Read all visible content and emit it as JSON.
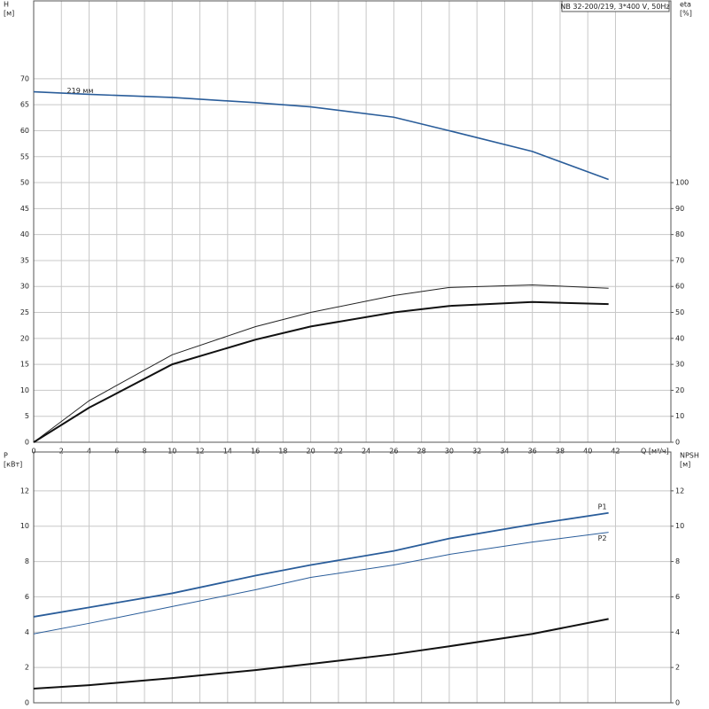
{
  "chart_data": [
    {
      "type": "line",
      "title": "NB 32-200/219, 3*400 V, 50Hz",
      "xlabel": "Q [м³/ч]",
      "ylabel": "H",
      "yunit": "[м]",
      "y2label": "eta",
      "y2unit": "[%]",
      "xlim": [
        0,
        46
      ],
      "xticks": [
        0,
        2,
        4,
        6,
        8,
        10,
        12,
        14,
        16,
        18,
        20,
        22,
        24,
        26,
        28,
        30,
        32,
        34,
        36,
        38,
        40,
        42
      ],
      "ylim": [
        0,
        85
      ],
      "yticks": [
        0,
        5,
        10,
        15,
        20,
        25,
        30,
        35,
        40,
        45,
        50,
        55,
        60,
        65,
        70
      ],
      "y2lim": [
        0,
        170
      ],
      "y2ticks": [
        0,
        10,
        20,
        30,
        40,
        50,
        60,
        70,
        80,
        90,
        100
      ],
      "grid": true,
      "x": [
        0,
        4,
        10,
        16,
        20,
        26,
        30,
        36,
        41.5
      ],
      "series": [
        {
          "name": "219 мм",
          "color": "#2a5d9a",
          "width": 1.6,
          "values": [
            67.5,
            67,
            66.4,
            65.4,
            64.6,
            62.6,
            60,
            56,
            50.6
          ]
        },
        {
          "color": "#222222",
          "width": 1,
          "axis": "y2",
          "values": [
            0,
            16,
            33.7,
            44.5,
            50,
            56.5,
            59.6,
            60.6,
            59.3
          ]
        },
        {
          "color": "#111111",
          "width": 2,
          "axis": "y2",
          "values": [
            0,
            13.3,
            30,
            39.5,
            44.6,
            50,
            52.5,
            54,
            53.2
          ]
        }
      ]
    },
    {
      "type": "line",
      "ylabel": "P",
      "yunit": "[кВт]",
      "y2label": "NPSH",
      "y2unit": "[м]",
      "xlim": [
        0,
        46
      ],
      "ylim": [
        0,
        14.2
      ],
      "yticks": [
        0,
        2,
        4,
        6,
        8,
        10,
        12
      ],
      "y2lim": [
        0,
        14.2
      ],
      "y2ticks": [
        0,
        2,
        4,
        6,
        8,
        10,
        12
      ],
      "grid": true,
      "x": [
        0,
        4,
        10,
        16,
        20,
        26,
        30,
        36,
        41.5
      ],
      "series": [
        {
          "name": "P1",
          "color": "#2a5d9a",
          "width": 1.8,
          "values": [
            4.87,
            5.4,
            6.2,
            7.2,
            7.8,
            8.6,
            9.3,
            10.1,
            10.75
          ]
        },
        {
          "name": "P2",
          "color": "#2a5d9a",
          "width": 1,
          "values": [
            3.9,
            4.5,
            5.45,
            6.4,
            7.1,
            7.8,
            8.4,
            9.1,
            9.65
          ]
        },
        {
          "color": "#111111",
          "width": 2,
          "axis": "y2",
          "values": [
            0.8,
            1.0,
            1.4,
            1.85,
            2.2,
            2.75,
            3.2,
            3.9,
            4.75
          ]
        }
      ]
    }
  ]
}
